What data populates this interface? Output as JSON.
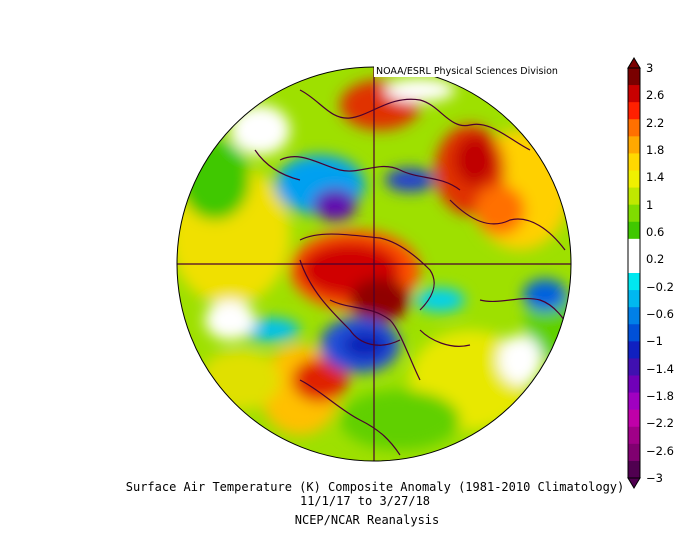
{
  "credit": "NOAA/ESRL Physical Sciences Division",
  "title_line1": "Surface Air Temperature (K) Composite Anomaly (1981-2010 Climatology)",
  "title_line2": "11/1/17  to 3/27/18",
  "title_line3": "NCEP/NCAR Reanalysis",
  "colorbar": {
    "ticks": [
      "3",
      "2.6",
      "2.2",
      "1.8",
      "1.4",
      "1",
      "0.6",
      "0.2",
      "−0.2",
      "−0.6",
      "−1",
      "−1.4",
      "−1.8",
      "−2.2",
      "−2.6",
      "−3"
    ],
    "colors": [
      "#7a0000",
      "#c80000",
      "#ff2000",
      "#ff7000",
      "#ffa800",
      "#ffd800",
      "#f0f000",
      "#c0e800",
      "#80dc00",
      "#40c800",
      "#ffffff",
      "#ffffff",
      "#00e8f0",
      "#00b8f0",
      "#0080e8",
      "#0050d8",
      "#1020c0",
      "#4010b0",
      "#7000b8",
      "#a000c0",
      "#c000a8",
      "#a00088",
      "#800070",
      "#500050"
    ]
  },
  "legend_position": "right",
  "projection": "north-polar-stereographic"
}
